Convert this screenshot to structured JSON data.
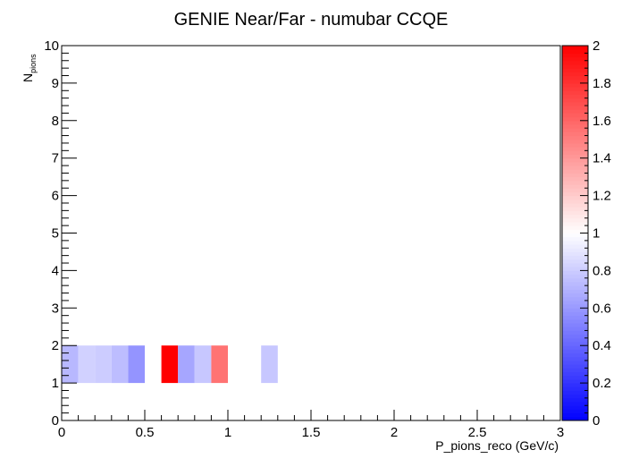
{
  "chart_data": {
    "type": "heatmap",
    "title": "GENIE Near/Far - numubar CCQE",
    "xlabel": "P_pions_reco (GeV/c)",
    "ylabel_main": "N",
    "ylabel_sub": "pions",
    "xlim": [
      0,
      3
    ],
    "ylim": [
      0,
      10
    ],
    "zlim": [
      0,
      2
    ],
    "x_ticks": [
      "0",
      "0.5",
      "1",
      "1.5",
      "2",
      "2.5",
      "3"
    ],
    "y_ticks": [
      "0",
      "1",
      "2",
      "3",
      "4",
      "5",
      "6",
      "7",
      "8",
      "9",
      "10"
    ],
    "z_ticks": [
      "0",
      "0.2",
      "0.4",
      "0.6",
      "0.8",
      "1",
      "1.2",
      "1.4",
      "1.6",
      "1.8",
      "2"
    ],
    "colormap": [
      "#0000ff",
      "#ffffff",
      "#ff0000"
    ],
    "cells": [
      {
        "x0": 0.0,
        "x1": 0.1,
        "y0": 1,
        "y1": 2,
        "z": 0.72
      },
      {
        "x0": 0.1,
        "x1": 0.2,
        "y0": 1,
        "y1": 2,
        "z": 0.82
      },
      {
        "x0": 0.2,
        "x1": 0.3,
        "y0": 1,
        "y1": 2,
        "z": 0.8
      },
      {
        "x0": 0.3,
        "x1": 0.4,
        "y0": 1,
        "y1": 2,
        "z": 0.74
      },
      {
        "x0": 0.4,
        "x1": 0.5,
        "y0": 1,
        "y1": 2,
        "z": 0.58
      },
      {
        "x0": 0.6,
        "x1": 0.7,
        "y0": 1,
        "y1": 2,
        "z": 2.0
      },
      {
        "x0": 0.7,
        "x1": 0.8,
        "y0": 1,
        "y1": 2,
        "z": 0.65
      },
      {
        "x0": 0.8,
        "x1": 0.9,
        "y0": 1,
        "y1": 2,
        "z": 0.78
      },
      {
        "x0": 0.9,
        "x1": 1.0,
        "y0": 1,
        "y1": 2,
        "z": 1.55
      },
      {
        "x0": 1.2,
        "x1": 1.3,
        "y0": 1,
        "y1": 2,
        "z": 0.78
      }
    ]
  }
}
